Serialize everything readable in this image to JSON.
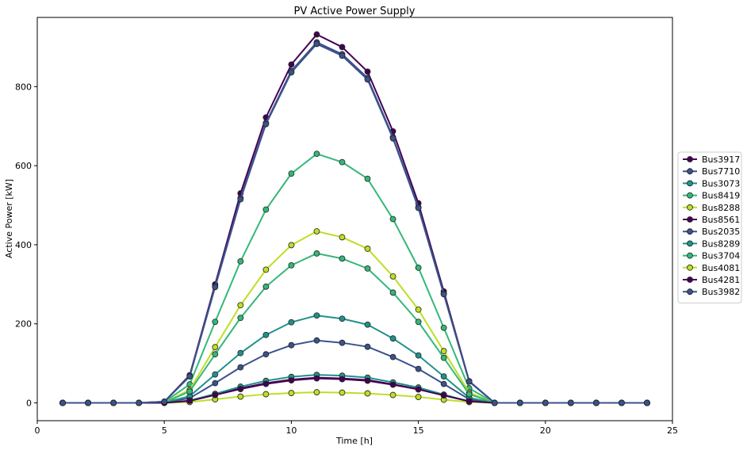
{
  "chart_data": {
    "type": "line",
    "title": "PV Active Power Supply",
    "xlabel": "Time [h]",
    "ylabel": "Active Power [kW]",
    "xlim": [
      0,
      25
    ],
    "ylim": [
      -45,
      975
    ],
    "xticks": [
      0,
      5,
      10,
      15,
      20,
      25
    ],
    "yticks": [
      0,
      200,
      400,
      600,
      800
    ],
    "grid": false,
    "legend_position": "right-outside",
    "x": [
      1,
      2,
      3,
      4,
      5,
      6,
      7,
      8,
      9,
      10,
      11,
      12,
      13,
      14,
      15,
      16,
      17,
      18,
      19,
      20,
      21,
      22,
      23,
      24
    ],
    "series": [
      {
        "name": "Bus3917",
        "color": "#440154",
        "values": [
          0,
          0,
          0,
          0,
          3,
          70,
          300,
          530,
          722,
          856,
          932,
          900,
          838,
          687,
          505,
          282,
          55,
          0,
          0,
          0,
          0,
          0,
          0,
          0
        ]
      },
      {
        "name": "Bus7710",
        "color": "#3b528b",
        "values": [
          0,
          0,
          0,
          0,
          1,
          12,
          50,
          90,
          123,
          146,
          158,
          152,
          142,
          116,
          86,
          48,
          9,
          0,
          0,
          0,
          0,
          0,
          0,
          0
        ]
      },
      {
        "name": "Bus3073",
        "color": "#21918c",
        "values": [
          0,
          0,
          0,
          0,
          1,
          17,
          72,
          126,
          172,
          204,
          221,
          213,
          198,
          163,
          120,
          67,
          13,
          0,
          0,
          0,
          0,
          0,
          0,
          0
        ]
      },
      {
        "name": "Bus8419",
        "color": "#35b779",
        "values": [
          0,
          0,
          0,
          0,
          2,
          47,
          205,
          358,
          489,
          580,
          630,
          609,
          567,
          465,
          342,
          190,
          37,
          0,
          0,
          0,
          0,
          0,
          0,
          0
        ]
      },
      {
        "name": "Bus8288",
        "color": "#bddf26",
        "values": [
          0,
          0,
          0,
          0,
          1,
          33,
          141,
          247,
          337,
          399,
          434,
          419,
          390,
          320,
          236,
          131,
          26,
          0,
          0,
          0,
          0,
          0,
          0,
          0
        ]
      },
      {
        "name": "Bus8561",
        "color": "#440154",
        "values": [
          0,
          0,
          0,
          0,
          0,
          5,
          21,
          37,
          50,
          59,
          64,
          62,
          58,
          47,
          35,
          19,
          4,
          0,
          0,
          0,
          0,
          0,
          0,
          0
        ]
      },
      {
        "name": "Bus2035",
        "color": "#3b528b",
        "values": [
          0,
          0,
          0,
          0,
          3,
          68,
          295,
          518,
          708,
          840,
          912,
          882,
          822,
          672,
          495,
          276,
          54,
          0,
          0,
          0,
          0,
          0,
          0,
          0
        ]
      },
      {
        "name": "Bus8289",
        "color": "#21918c",
        "values": [
          0,
          0,
          0,
          0,
          0,
          6,
          23,
          41,
          56,
          66,
          71,
          69,
          64,
          52,
          39,
          21,
          4,
          0,
          0,
          0,
          0,
          0,
          0,
          0
        ]
      },
      {
        "name": "Bus3704",
        "color": "#35b779",
        "values": [
          0,
          0,
          0,
          0,
          1,
          29,
          123,
          215,
          294,
          348,
          378,
          365,
          340,
          279,
          205,
          114,
          22,
          0,
          0,
          0,
          0,
          0,
          0,
          0
        ]
      },
      {
        "name": "Bus4081",
        "color": "#bddf26",
        "values": [
          0,
          0,
          0,
          0,
          0,
          2,
          9,
          16,
          22,
          25,
          27,
          26,
          24,
          20,
          15,
          8,
          2,
          0,
          0,
          0,
          0,
          0,
          0,
          0
        ]
      },
      {
        "name": "Bus4281",
        "color": "#440154",
        "values": [
          0,
          0,
          0,
          0,
          0,
          5,
          20,
          35,
          48,
          57,
          62,
          60,
          56,
          46,
          34,
          19,
          4,
          0,
          0,
          0,
          0,
          0,
          0,
          0
        ]
      },
      {
        "name": "Bus3982",
        "color": "#3b528b",
        "values": [
          0,
          0,
          0,
          0,
          3,
          67,
          293,
          515,
          705,
          836,
          908,
          878,
          818,
          669,
          493,
          275,
          54,
          0,
          0,
          0,
          0,
          0,
          0,
          0
        ]
      }
    ]
  }
}
